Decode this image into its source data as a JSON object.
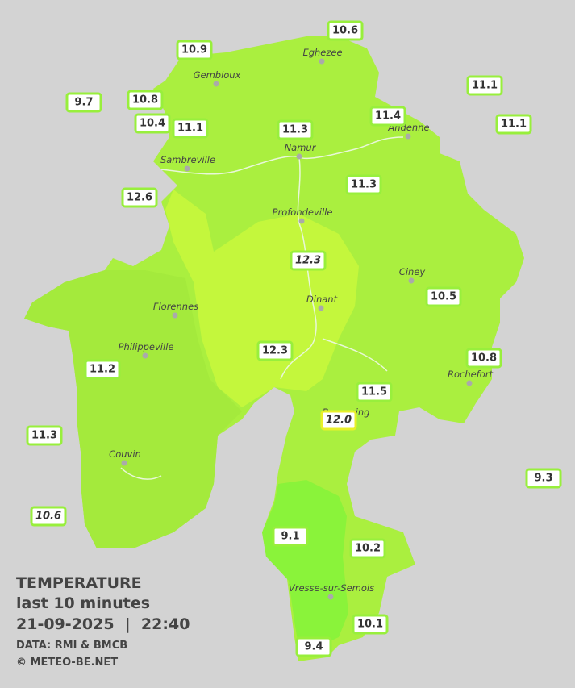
{
  "map": {
    "stations": [
      "10.6",
      "10.9",
      "9.7",
      "10.8",
      "10.4",
      "11.1",
      "11.3",
      "11.4",
      "11.1",
      "11.1",
      "12.6",
      "11.3",
      "12.3",
      "10.5",
      "12.3",
      "10.8",
      "11.2",
      "11.5",
      "12.0",
      "11.3",
      "9.3",
      "10.6",
      "9.1",
      "10.2",
      "10.1",
      "9.4"
    ],
    "cities": [
      "Eghezee",
      "Gembloux",
      "Andenne",
      "Namur",
      "Sambreville",
      "Profondeville",
      "Ciney",
      "Dinant",
      "Florennes",
      "Philippeville",
      "Rochefort",
      "Beauraing",
      "Couvin",
      "Vresse-sur-Semois"
    ],
    "legend": {
      "title": "TEMPERATURE",
      "subtitle": "last 10 minutes",
      "datetime": "21-09-2025  |  22:40",
      "source": "DATA: RMI & BMCB",
      "copyright": "© METEO-BE.NET"
    }
  }
}
